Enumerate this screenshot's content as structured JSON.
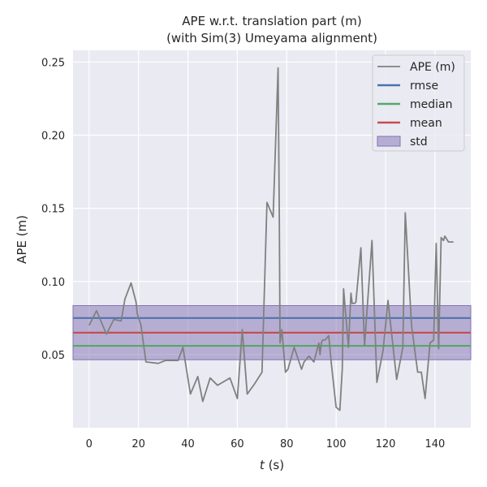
{
  "chart_data": {
    "type": "line",
    "title": [
      "APE w.r.t. translation part (m)",
      "(with Sim(3) Umeyama alignment)"
    ],
    "xlabel": {
      "var": "t",
      "unit": " (s)"
    },
    "ylabel": "APE (m)",
    "xlim": [
      -6.5,
      154.5
    ],
    "ylim": [
      0.0,
      0.258
    ],
    "xticks": [
      0,
      20,
      40,
      60,
      80,
      100,
      120,
      140
    ],
    "yticks": [
      0.05,
      0.1,
      0.15,
      0.2,
      0.25
    ],
    "ytick_labels": [
      "0.05",
      "0.10",
      "0.15",
      "0.20",
      "0.25"
    ],
    "grid": true,
    "legend_position": "top-right",
    "colors": {
      "ape": "#808080",
      "rmse": "#4c72b0",
      "median": "#55a868",
      "mean": "#c44e52",
      "std": "#8172b2",
      "background": "#eaeaf2",
      "grid": "#ffffff"
    },
    "stats": {
      "rmse": 0.075,
      "median": 0.056,
      "mean": 0.065,
      "std_range": [
        0.0465,
        0.0835
      ]
    },
    "legend": [
      "APE (m)",
      "rmse",
      "median",
      "mean",
      "std"
    ],
    "series": [
      {
        "name": "APE (m)",
        "x": [
          0,
          3,
          7,
          10,
          13,
          14.5,
          17,
          19,
          19.5,
          21,
          23,
          28,
          31,
          36,
          38,
          41,
          44,
          46,
          49,
          52,
          54,
          57,
          60,
          62,
          64,
          67,
          70,
          72,
          74.5,
          76.5,
          77,
          77.3,
          78,
          79.5,
          80.5,
          83,
          86,
          87,
          89,
          91,
          93,
          93.5,
          94,
          94.5,
          95.5,
          97,
          98,
          100,
          101.5,
          102.5,
          103,
          105,
          106,
          106.5,
          107,
          107.5,
          108,
          110,
          111.5,
          114.5,
          116.5,
          119,
          121,
          124.5,
          127,
          128,
          130.5,
          133,
          134.5,
          136,
          138,
          139.5,
          140.5,
          141.5,
          142.5,
          143.5,
          144,
          145.5,
          146.5,
          147.5
        ],
        "values": [
          0.07,
          0.08,
          0.064,
          0.074,
          0.073,
          0.088,
          0.099,
          0.086,
          0.078,
          0.07,
          0.045,
          0.044,
          0.046,
          0.046,
          0.055,
          0.023,
          0.035,
          0.018,
          0.034,
          0.029,
          0.031,
          0.034,
          0.02,
          0.067,
          0.023,
          0.03,
          0.038,
          0.154,
          0.144,
          0.246,
          0.146,
          0.058,
          0.067,
          0.038,
          0.04,
          0.055,
          0.04,
          0.045,
          0.049,
          0.045,
          0.058,
          0.05,
          0.058,
          0.06,
          0.06,
          0.063,
          0.045,
          0.014,
          0.012,
          0.04,
          0.095,
          0.055,
          0.092,
          0.085,
          0.085,
          0.085,
          0.086,
          0.123,
          0.056,
          0.128,
          0.031,
          0.053,
          0.087,
          0.033,
          0.055,
          0.147,
          0.07,
          0.038,
          0.038,
          0.02,
          0.058,
          0.06,
          0.126,
          0.054,
          0.13,
          0.128,
          0.131,
          0.127,
          0.127,
          0.127
        ]
      }
    ]
  }
}
